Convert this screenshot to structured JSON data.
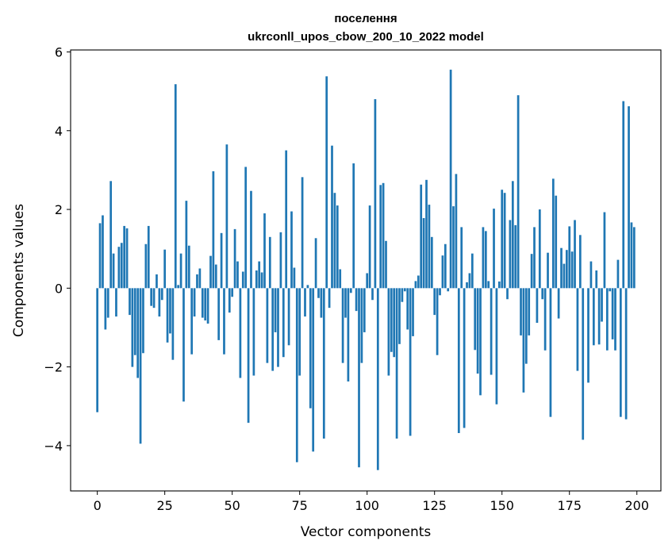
{
  "chart_data": {
    "type": "bar",
    "title": "поселення",
    "subtitle": "ukrconll_upos_cbow_200_10_2022 model",
    "xlabel": "Vector components",
    "ylabel": "Components values",
    "xlim": [
      -9.9,
      208.9
    ],
    "ylim": [
      -5.15,
      6.05
    ],
    "xticks": [
      0,
      25,
      50,
      75,
      100,
      125,
      150,
      175,
      200
    ],
    "xtick_labels": [
      "0",
      "25",
      "50",
      "75",
      "100",
      "125",
      "150",
      "175",
      "200"
    ],
    "yticks": [
      -4,
      -2,
      0,
      2,
      4,
      6
    ],
    "ytick_labels": [
      "−4",
      "−2",
      "0",
      "2",
      "4",
      "6"
    ],
    "grid": false,
    "bar_color": "#1f77b4",
    "values": [
      -3.15,
      1.65,
      1.85,
      -1.05,
      -0.75,
      2.72,
      0.88,
      -0.72,
      1.05,
      1.15,
      1.58,
      1.52,
      -0.68,
      -2.0,
      -1.7,
      -2.28,
      -3.95,
      -1.65,
      1.12,
      1.58,
      -0.45,
      -0.5,
      0.35,
      -0.72,
      -0.3,
      0.98,
      -1.38,
      -1.15,
      -1.82,
      5.18,
      0.08,
      0.88,
      -2.88,
      2.22,
      1.08,
      -1.68,
      -0.72,
      0.35,
      0.5,
      -0.75,
      -0.82,
      -0.9,
      0.82,
      2.97,
      0.6,
      -1.32,
      1.4,
      -1.68,
      3.65,
      -0.62,
      -0.22,
      1.5,
      0.68,
      -2.28,
      0.42,
      3.08,
      -3.42,
      2.47,
      -2.22,
      0.45,
      0.68,
      0.4,
      1.9,
      -1.9,
      1.3,
      -2.1,
      -1.12,
      -2.0,
      1.42,
      -1.75,
      3.5,
      -1.45,
      1.95,
      0.52,
      -4.42,
      -2.22,
      2.82,
      -0.72,
      0.08,
      -3.05,
      -4.15,
      1.27,
      -0.25,
      -0.75,
      -3.82,
      5.38,
      -0.5,
      3.62,
      2.42,
      2.1,
      0.48,
      -1.9,
      -0.75,
      -2.37,
      -0.12,
      3.17,
      -0.58,
      -4.55,
      -1.9,
      -1.12,
      0.38,
      2.1,
      -0.3,
      4.8,
      -4.62,
      2.62,
      2.67,
      1.2,
      -2.22,
      -1.62,
      -1.75,
      -3.82,
      -1.42,
      -0.35,
      -0.08,
      -1.05,
      -3.75,
      -1.22,
      0.18,
      0.32,
      2.63,
      1.78,
      2.75,
      2.12,
      1.3,
      -0.68,
      -1.7,
      -0.18,
      0.83,
      1.12,
      -0.08,
      5.55,
      2.08,
      2.9,
      -3.68,
      1.55,
      -3.55,
      0.15,
      0.38,
      0.88,
      -1.57,
      -2.17,
      -2.72,
      1.55,
      1.45,
      0.18,
      -2.2,
      2.02,
      -2.95,
      0.17,
      2.5,
      2.42,
      -0.28,
      1.73,
      2.72,
      1.6,
      4.9,
      -1.2,
      -2.65,
      -1.92,
      -1.2,
      0.87,
      1.55,
      -0.88,
      2.0,
      -0.28,
      -1.58,
      0.9,
      -3.27,
      2.78,
      2.35,
      -0.77,
      1.02,
      0.62,
      0.97,
      1.57,
      0.93,
      1.73,
      -2.1,
      1.35,
      -3.85,
      0.0,
      -2.4,
      0.68,
      -1.45,
      0.45,
      -1.43,
      -0.85,
      1.93,
      -1.58,
      -0.08,
      -1.3,
      -1.58,
      0.72,
      -3.27,
      4.75,
      -3.33,
      4.62,
      1.67,
      1.55
    ]
  }
}
